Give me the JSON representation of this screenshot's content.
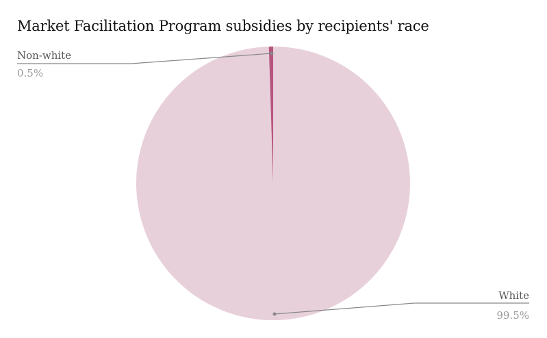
{
  "chart_data": {
    "type": "pie",
    "title": "Market Facilitation Program subsidies by recipients' race",
    "slices": [
      {
        "label": "White",
        "value": 99.5,
        "display": "99.5%",
        "color": "#e8d0da"
      },
      {
        "label": "Non-white",
        "value": 0.5,
        "display": "0.5%",
        "color": "#b5567f"
      }
    ]
  }
}
